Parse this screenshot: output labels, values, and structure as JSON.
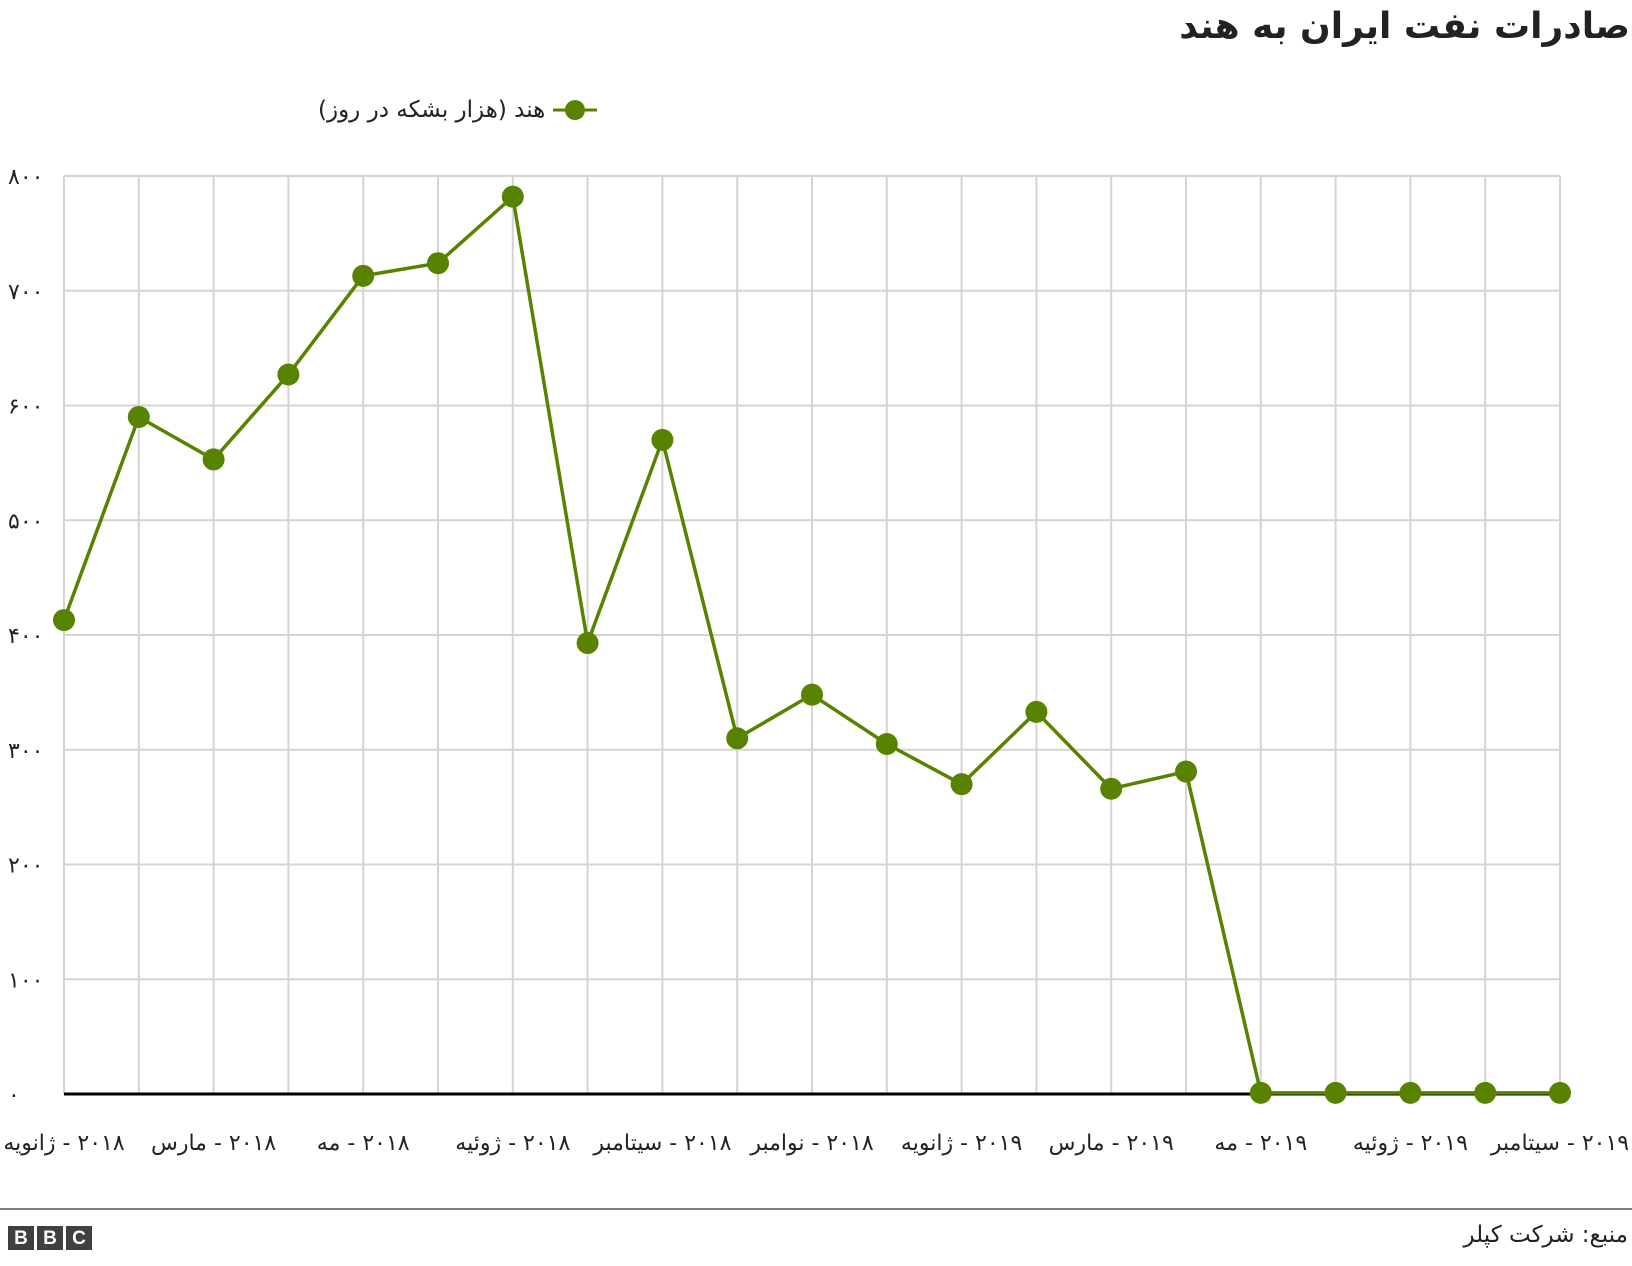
{
  "chart_data": {
    "type": "line",
    "title": "صادرات نفت ایران به هند",
    "legend": "هند (هزار بشکه در روز)",
    "legend_position": "top-left",
    "grid": true,
    "line_color": "#588300",
    "ylim": [
      0,
      800
    ],
    "y_ticks": [
      0,
      100,
      200,
      300,
      400,
      500,
      600,
      700,
      800
    ],
    "y_tick_labels": [
      "۰",
      "۱۰۰",
      "۲۰۰",
      "۳۰۰",
      "۴۰۰",
      "۵۰۰",
      "۶۰۰",
      "۷۰۰",
      "۸۰۰"
    ],
    "x_tick_labels": [
      "۲۰۱۸ - ژانویه",
      "۲۰۱۸ - مارس",
      "۲۰۱۸ - مه",
      "۲۰۱۸ - ژوئیه",
      "۲۰۱۸ - سیتامبر",
      "۲۰۱۸ - نوامبر",
      "۲۰۱۹ - ژانویه",
      "۲۰۱۹ - مارس",
      "۲۰۱۹ - مه",
      "۲۰۱۹ - ژوئیه",
      "۲۰۱۹ - سیتامبر"
    ],
    "x": [
      "2018-01",
      "2018-02",
      "2018-03",
      "2018-04",
      "2018-05",
      "2018-06",
      "2018-07",
      "2018-08",
      "2018-09",
      "2018-10",
      "2018-11",
      "2018-12",
      "2019-01",
      "2019-02",
      "2019-03",
      "2019-04",
      "2019-05",
      "2019-06",
      "2019-07",
      "2019-08",
      "2019-09"
    ],
    "series": [
      {
        "name": "هند (هزار بشکه در روز)",
        "values": [
          413,
          590,
          553,
          627,
          713,
          724,
          782,
          393,
          570,
          310,
          348,
          305,
          270,
          333,
          266,
          281,
          1,
          1,
          1,
          1,
          1
        ]
      }
    ]
  },
  "source": "منبع: شرکت کپلر",
  "logo": {
    "letters": [
      "B",
      "B",
      "C"
    ]
  }
}
